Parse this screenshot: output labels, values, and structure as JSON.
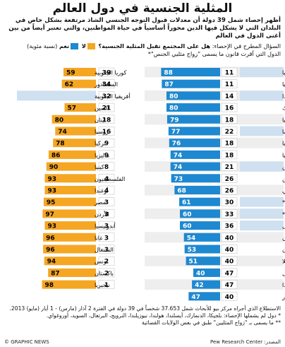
{
  "title": "المثلية الجنسية في دول العالم",
  "intro": "أظهر إحصاء شمل 39 دولة أن معدلات قبول التوجه الجنسي الشاذ مرتفعة بشكل خاص في البلدان التي لا يشكل فيها الدين محوراً أساسياً في حياة المواطنين، والتي تعتبر أيضاً من بين أغنى الدول في العالم",
  "question": {
    "prefix": "السؤال المطرح في الإحصاء:",
    "text": "هل على المجتمع تقبل المثلية الجنسية؟",
    "no_label": "لا",
    "yes_label": "نعم",
    "unit": "(نسبة مئوية)",
    "line2": "الدول التي أقرت قانون ما يسمى \"زواج مثليي الجنس\"*"
  },
  "colors": {
    "no": "#f5a623",
    "yes": "#1e88d0",
    "highlight_label": "#cfe0f0",
    "row_bg": "#e6e6e6"
  },
  "chart_data": [
    {
      "type": "bar",
      "panel": "right",
      "categories": [
        "إسبانيا",
        "ألمانيا",
        "كندا",
        "جمهورية التشيك",
        "أستراليا",
        "فرنسا",
        "بريطانيا",
        "إيطاليا",
        "الأرجنتين",
        "الفلبين",
        "تشيلي",
        "المكسيك**",
        "الولايات المتحدة**",
        "البرازيل",
        "اليابان",
        "اليونان",
        "فنزويلا",
        "إسرائيل",
        "بولندا",
        "السلفادور"
      ],
      "highlighted": [
        true,
        false,
        true,
        false,
        false,
        true,
        false,
        false,
        true,
        false,
        false,
        true,
        true,
        true,
        false,
        false,
        false,
        false,
        false,
        false
      ],
      "series": [
        {
          "name": "لا",
          "values": [
            11,
            11,
            14,
            16,
            18,
            22,
            18,
            18,
            21,
            26,
            26,
            30,
            33,
            36,
            40,
            40,
            40,
            47,
            47,
            40
          ]
        },
        {
          "name": "نعم",
          "values": [
            88,
            87,
            80,
            80,
            79,
            77,
            76,
            74,
            74,
            73,
            68,
            61,
            60,
            60,
            54,
            53,
            51,
            40,
            42,
            47
          ]
        }
      ]
    },
    {
      "type": "bar",
      "panel": "left",
      "categories": [
        "كوريا الجنوبية",
        "السلفادور",
        "أفريقيا الجنوبية",
        "الصين",
        "لبنان",
        "روسيا",
        "تركيا",
        "ماليزيا",
        "كينيا",
        "الفلسطينيون",
        "أوغندا",
        "مصر",
        "الأردن",
        "أندونيسيا",
        "غانا",
        "السنغال",
        "تونس",
        "باكستان",
        "نيجيريا"
      ],
      "highlighted": [
        false,
        false,
        true,
        false,
        false,
        false,
        false,
        false,
        false,
        false,
        false,
        false,
        false,
        false,
        false,
        false,
        false,
        false,
        false
      ],
      "series": [
        {
          "name": "نعم",
          "values": [
            39,
            34,
            32,
            21,
            18,
            16,
            9,
            9,
            8,
            4,
            4,
            3,
            3,
            3,
            3,
            3,
            2,
            2,
            1
          ]
        },
        {
          "name": "لا",
          "values": [
            59,
            62,
            61,
            57,
            80,
            74,
            78,
            86,
            90,
            93,
            93,
            95,
            97,
            93,
            96,
            96,
            94,
            87,
            98
          ]
        }
      ]
    }
  ],
  "footnotes": [
    "الاستطلاع الذي أجراه مركز بيو للأبحاث شمل 37.653 شخصاً في 39 دولة في الفترة 2 آذار (مارس) - 1 أيار (مايو) 2013.",
    "* دول لم يشملها الإحصاء: بلجيكا، الدنمارك، أيسلندا، هولندا، نيوزيلندا، النرويج، البرتغال، السويد، أوروغواي.",
    "** ما يسمى بـ \"زواج المثليين\" طبق في بعض الولايات القضائية"
  ],
  "credit": "© GRAPHIC NEWS",
  "source": "المصدر: Pew Research Center"
}
